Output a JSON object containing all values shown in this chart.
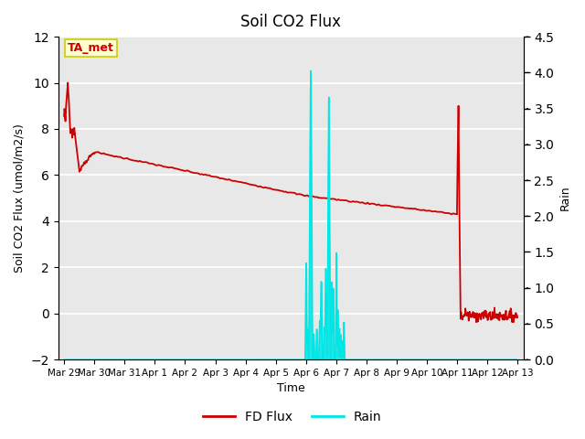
{
  "title": "Soil CO2 Flux",
  "ylabel_left": "Soil CO2 Flux (umol/m2/s)",
  "ylabel_right": "Rain",
  "xlabel": "Time",
  "ylim_left": [
    -2,
    12
  ],
  "ylim_right": [
    0.0,
    4.5
  ],
  "yticks_left": [
    -2,
    0,
    2,
    4,
    6,
    8,
    10,
    12
  ],
  "yticks_right": [
    0.0,
    0.5,
    1.0,
    1.5,
    2.0,
    2.5,
    3.0,
    3.5,
    4.0,
    4.5
  ],
  "background_color": "#e8e8e8",
  "fd_flux_color": "#cc0000",
  "rain_color": "#00e5e5",
  "annotation_text": "TA_met",
  "annotation_bg": "#ffffcc",
  "annotation_border": "#cccc00",
  "legend_fd_label": "FD Flux",
  "legend_rain_label": "Rain",
  "x_tick_labels": [
    "Mar 29",
    "Mar 30",
    "Mar 31",
    "Apr 1",
    "Apr 2",
    "Apr 3",
    "Apr 4",
    "Apr 5",
    "Apr 6",
    "Apr 7",
    "Apr 8",
    "Apr 9",
    "Apr 10",
    "Apr 11",
    "Apr 12",
    "Apr 13"
  ],
  "x_tick_positions": [
    0,
    1,
    2,
    3,
    4,
    5,
    6,
    7,
    8,
    9,
    10,
    11,
    12,
    13,
    14,
    15
  ]
}
